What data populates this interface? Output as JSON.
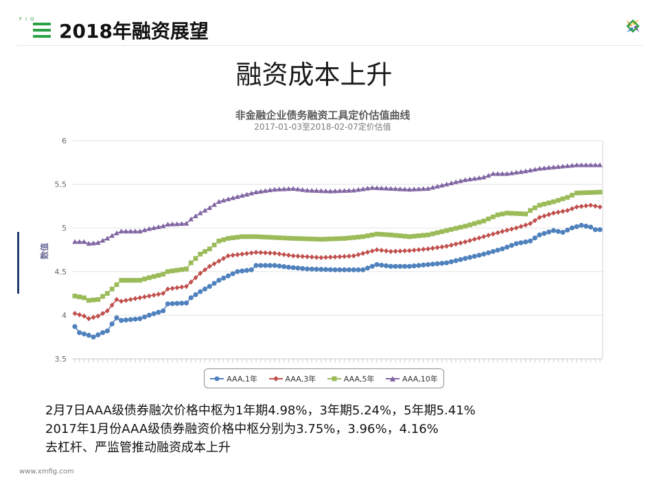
{
  "header": {
    "fig_mini": "FIG",
    "title": "2018年融资展望",
    "icon": "three-bars-icon",
    "logo": "xmfig-logo-icon",
    "brand_colors": {
      "green": "#2aa147",
      "orange": "#f29b2b",
      "yellow": "#f5c21a",
      "purple": "#7b4ea1",
      "blue": "#3a7bd5"
    }
  },
  "heading": "融资成本上升",
  "chart_data": {
    "type": "line",
    "title": "非金融企业债务融资工具定价估值曲线",
    "subtitle": "2017-01-03至2018-02-07定价估值",
    "ylabel": "数值",
    "xlabel": "",
    "ylim": [
      3.5,
      6
    ],
    "yticks": [
      3.5,
      4,
      4.5,
      5,
      5.5,
      6
    ],
    "grid": true,
    "legend_position": "bottom",
    "series": [
      {
        "name": "AAA,1年",
        "color": "#4f81bd",
        "marker": "circle",
        "anchors": [
          [
            0,
            3.87
          ],
          [
            1,
            3.8
          ],
          [
            3,
            3.77
          ],
          [
            4,
            3.75
          ],
          [
            6,
            3.8
          ],
          [
            7,
            3.82
          ],
          [
            8,
            3.9
          ],
          [
            9,
            3.97
          ],
          [
            10,
            3.94
          ],
          [
            14,
            3.96
          ],
          [
            16,
            4.0
          ],
          [
            19,
            4.05
          ],
          [
            20,
            4.13
          ],
          [
            24,
            4.14
          ],
          [
            25,
            4.2
          ],
          [
            27,
            4.27
          ],
          [
            29,
            4.33
          ],
          [
            31,
            4.4
          ],
          [
            33,
            4.45
          ],
          [
            35,
            4.5
          ],
          [
            38,
            4.52
          ],
          [
            39,
            4.57
          ],
          [
            43,
            4.57
          ],
          [
            46,
            4.55
          ],
          [
            50,
            4.53
          ],
          [
            56,
            4.52
          ],
          [
            62,
            4.52
          ],
          [
            65,
            4.58
          ],
          [
            68,
            4.56
          ],
          [
            72,
            4.56
          ],
          [
            76,
            4.58
          ],
          [
            80,
            4.6
          ],
          [
            84,
            4.65
          ],
          [
            88,
            4.7
          ],
          [
            92,
            4.76
          ],
          [
            95,
            4.82
          ],
          [
            98,
            4.85
          ],
          [
            100,
            4.92
          ],
          [
            103,
            4.97
          ],
          [
            105,
            4.95
          ],
          [
            107,
            5.0
          ],
          [
            109,
            5.03
          ],
          [
            111,
            5.01
          ],
          [
            112,
            4.98
          ],
          [
            113,
            4.98
          ]
        ]
      },
      {
        "name": "AAA,3年",
        "color": "#c0504d",
        "marker": "diamond",
        "anchors": [
          [
            0,
            4.02
          ],
          [
            2,
            3.99
          ],
          [
            3,
            3.96
          ],
          [
            5,
            3.99
          ],
          [
            7,
            4.05
          ],
          [
            9,
            4.18
          ],
          [
            10,
            4.16
          ],
          [
            14,
            4.2
          ],
          [
            16,
            4.22
          ],
          [
            19,
            4.25
          ],
          [
            20,
            4.3
          ],
          [
            24,
            4.33
          ],
          [
            25,
            4.38
          ],
          [
            27,
            4.48
          ],
          [
            29,
            4.56
          ],
          [
            31,
            4.62
          ],
          [
            33,
            4.68
          ],
          [
            36,
            4.7
          ],
          [
            39,
            4.72
          ],
          [
            43,
            4.71
          ],
          [
            47,
            4.68
          ],
          [
            53,
            4.66
          ],
          [
            57,
            4.67
          ],
          [
            60,
            4.68
          ],
          [
            65,
            4.75
          ],
          [
            68,
            4.73
          ],
          [
            72,
            4.74
          ],
          [
            76,
            4.76
          ],
          [
            80,
            4.79
          ],
          [
            84,
            4.84
          ],
          [
            88,
            4.9
          ],
          [
            92,
            4.96
          ],
          [
            95,
            5.0
          ],
          [
            98,
            5.05
          ],
          [
            100,
            5.12
          ],
          [
            103,
            5.17
          ],
          [
            106,
            5.2
          ],
          [
            108,
            5.24
          ],
          [
            111,
            5.26
          ],
          [
            113,
            5.24
          ]
        ]
      },
      {
        "name": "AAA,5年",
        "color": "#9bbb59",
        "marker": "square",
        "anchors": [
          [
            0,
            4.22
          ],
          [
            2,
            4.2
          ],
          [
            3,
            4.17
          ],
          [
            5,
            4.18
          ],
          [
            7,
            4.25
          ],
          [
            9,
            4.35
          ],
          [
            10,
            4.4
          ],
          [
            14,
            4.4
          ],
          [
            16,
            4.43
          ],
          [
            19,
            4.47
          ],
          [
            20,
            4.5
          ],
          [
            24,
            4.53
          ],
          [
            25,
            4.6
          ],
          [
            27,
            4.7
          ],
          [
            29,
            4.76
          ],
          [
            31,
            4.85
          ],
          [
            33,
            4.88
          ],
          [
            36,
            4.9
          ],
          [
            39,
            4.9
          ],
          [
            43,
            4.89
          ],
          [
            47,
            4.88
          ],
          [
            53,
            4.87
          ],
          [
            58,
            4.88
          ],
          [
            62,
            4.9
          ],
          [
            65,
            4.93
          ],
          [
            68,
            4.92
          ],
          [
            72,
            4.9
          ],
          [
            76,
            4.92
          ],
          [
            80,
            4.97
          ],
          [
            84,
            5.02
          ],
          [
            88,
            5.08
          ],
          [
            91,
            5.15
          ],
          [
            93,
            5.17
          ],
          [
            97,
            5.16
          ],
          [
            98,
            5.2
          ],
          [
            100,
            5.26
          ],
          [
            103,
            5.3
          ],
          [
            106,
            5.35
          ],
          [
            108,
            5.4
          ],
          [
            113,
            5.41
          ]
        ]
      },
      {
        "name": "AAA,10年",
        "color": "#8064a2",
        "marker": "triangle",
        "anchors": [
          [
            0,
            4.84
          ],
          [
            2,
            4.84
          ],
          [
            3,
            4.82
          ],
          [
            5,
            4.83
          ],
          [
            7,
            4.88
          ],
          [
            9,
            4.94
          ],
          [
            10,
            4.96
          ],
          [
            14,
            4.96
          ],
          [
            16,
            4.99
          ],
          [
            19,
            5.02
          ],
          [
            20,
            5.04
          ],
          [
            24,
            5.05
          ],
          [
            25,
            5.1
          ],
          [
            27,
            5.17
          ],
          [
            29,
            5.23
          ],
          [
            31,
            5.3
          ],
          [
            33,
            5.33
          ],
          [
            36,
            5.37
          ],
          [
            39,
            5.41
          ],
          [
            43,
            5.44
          ],
          [
            47,
            5.45
          ],
          [
            50,
            5.43
          ],
          [
            55,
            5.42
          ],
          [
            60,
            5.43
          ],
          [
            64,
            5.46
          ],
          [
            68,
            5.45
          ],
          [
            72,
            5.44
          ],
          [
            76,
            5.45
          ],
          [
            80,
            5.5
          ],
          [
            84,
            5.55
          ],
          [
            88,
            5.58
          ],
          [
            90,
            5.62
          ],
          [
            93,
            5.62
          ],
          [
            97,
            5.65
          ],
          [
            100,
            5.68
          ],
          [
            104,
            5.7
          ],
          [
            108,
            5.72
          ],
          [
            113,
            5.72
          ]
        ]
      }
    ]
  },
  "notes": [
    "2月7日AAA级债券融次价格中枢为1年期4.98%，3年期5.24%，5年期5.41%",
    "2017年1月份AAA级债券融资价格中枢分别为3.75%，3.96%，4.16%",
    "去杠杆、严监管推动融资成本上升"
  ],
  "footer": "www.xmfig.com"
}
